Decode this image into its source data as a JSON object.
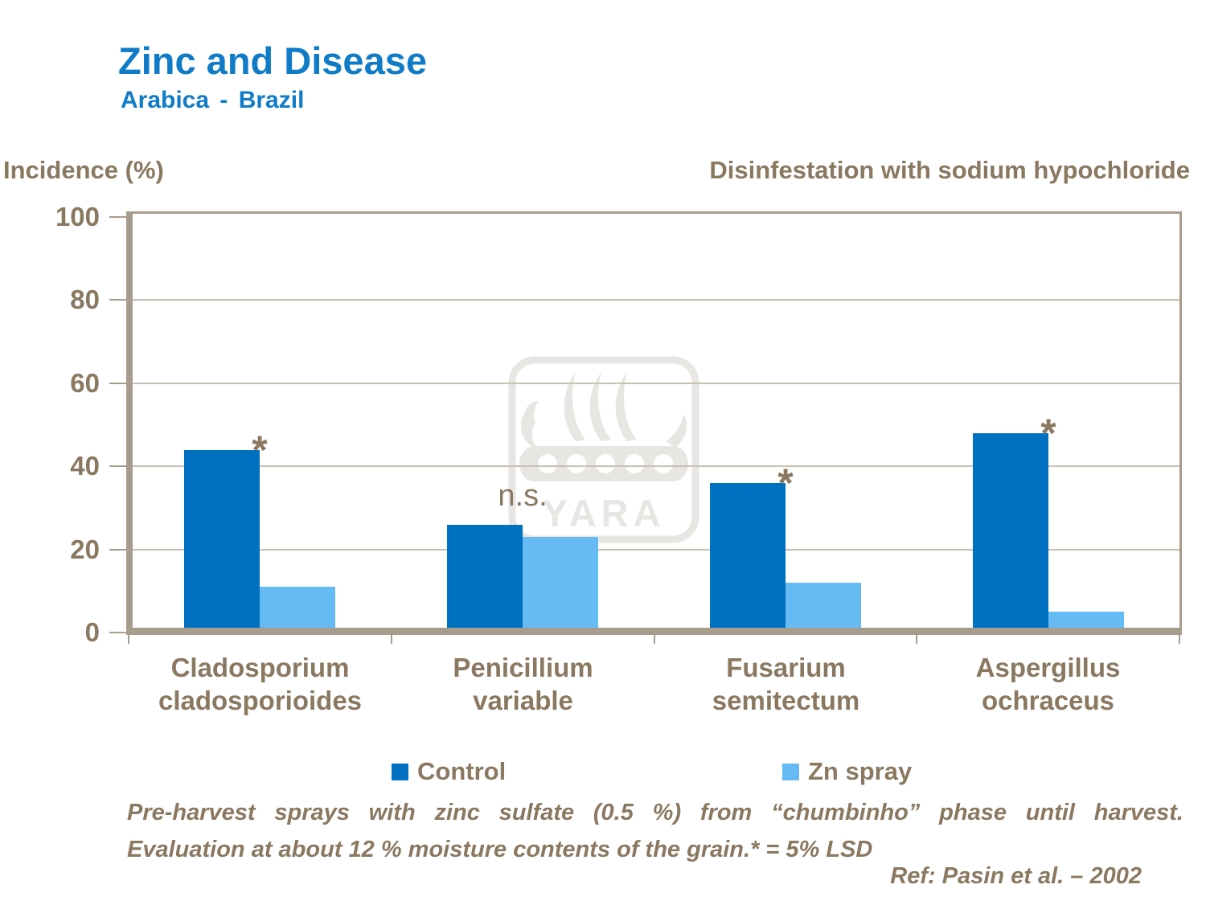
{
  "header": {
    "title": "Zinc and Disease",
    "subtitle": "Arabica - Brazil"
  },
  "chart_data": {
    "type": "bar",
    "ylabel": "Incidence (%)",
    "right_label": "Disinfestation with sodium hypochloride",
    "ylim": [
      0,
      100
    ],
    "yticks": [
      0,
      20,
      40,
      60,
      80,
      100
    ],
    "grid": true,
    "legend_position": "bottom",
    "categories": [
      "Cladosporium cladosporioides",
      "Penicillium variable",
      "Fusarium semitectum",
      "Aspergillus ochraceus"
    ],
    "category_lines": [
      [
        "Cladosporium",
        "cladosporioides"
      ],
      [
        "Penicillium",
        "variable"
      ],
      [
        "Fusarium",
        "semitectum"
      ],
      [
        "Aspergillus",
        "ochraceus"
      ]
    ],
    "series": [
      {
        "name": "Control",
        "color": "#0070C0",
        "values": [
          44,
          26,
          36,
          48
        ]
      },
      {
        "name": "Zn spray",
        "color": "#66BBF5",
        "values": [
          11,
          23,
          12,
          5
        ]
      }
    ],
    "significance": [
      "*",
      "n.s.",
      "*",
      "*"
    ]
  },
  "watermark": {
    "label": "YARA"
  },
  "footnote": {
    "line1": "Pre-harvest sprays with zinc sulfate (0.5 %) from “chumbinho” phase until harvest.",
    "line2": "Evaluation at about 12 % moisture contents of the grain.* = 5% LSD",
    "ref": "Ref: Pasin et al. – 2002"
  },
  "colors": {
    "title_blue": "#107CC8",
    "text_brown": "#8A7860",
    "axis_tan": "#A89C8C",
    "gridline": "#C8C0B2",
    "control_blue": "#0070C0",
    "zn_blue": "#66BBF5",
    "watermark_gray": "#E8E6E3"
  }
}
